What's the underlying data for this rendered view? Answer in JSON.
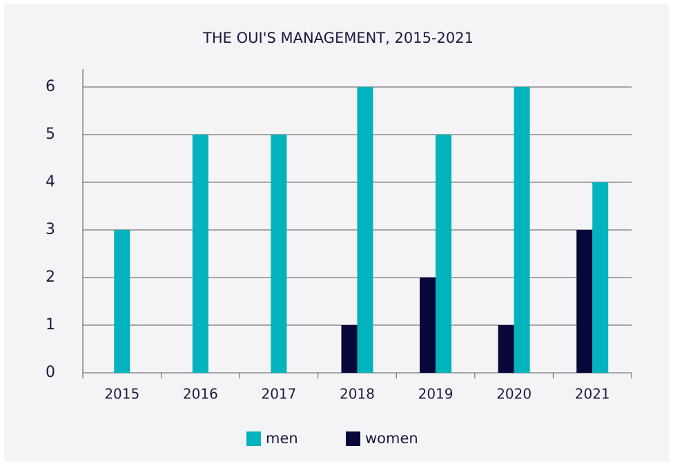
{
  "chart_data": {
    "type": "bar",
    "title": "THE OUI'S MANAGEMENT, 2015-2021",
    "categories": [
      "2015",
      "2016",
      "2017",
      "2018",
      "2019",
      "2020",
      "2021"
    ],
    "series": [
      {
        "name": "women",
        "color": "#07073a",
        "values": [
          null,
          null,
          null,
          1,
          2,
          1,
          3
        ]
      },
      {
        "name": "men",
        "color": "#00b3bc",
        "values": [
          3,
          5,
          5,
          6,
          5,
          6,
          4
        ]
      }
    ],
    "ylim": [
      0,
      6
    ],
    "yticks": [
      0,
      1,
      2,
      3,
      4,
      5,
      6
    ],
    "grid": true,
    "legend": "bottom"
  }
}
